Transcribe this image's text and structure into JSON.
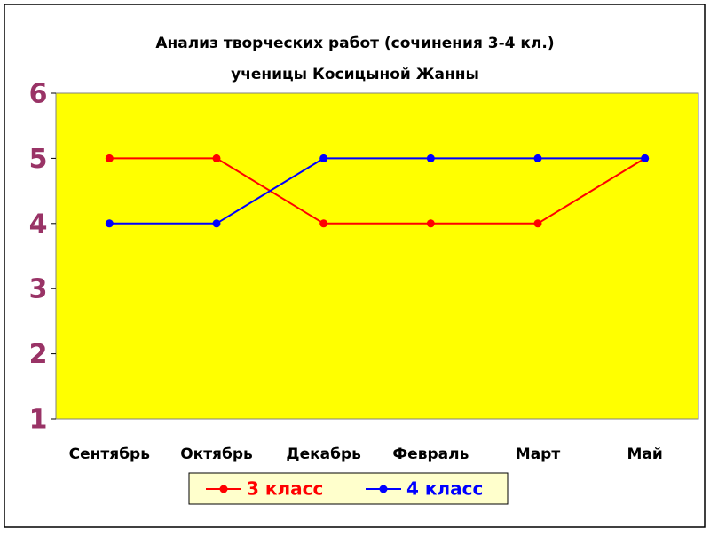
{
  "chart_data": {
    "type": "line",
    "title": "Анализ творческих работ (сочинения 3-4 кл.)",
    "subtitle": "ученицы Косицыной Жанны",
    "categories": [
      "Сентябрь",
      "Октябрь",
      "Декабрь",
      "Февраль",
      "Март",
      "Май"
    ],
    "series": [
      {
        "name": "3 класс",
        "color": "#ff0000",
        "values": [
          5,
          5,
          4,
          4,
          4,
          5
        ]
      },
      {
        "name": "4 класс",
        "color": "#0000ff",
        "values": [
          4,
          4,
          5,
          5,
          5,
          5
        ]
      }
    ],
    "ylim": [
      1,
      6
    ],
    "yticks": [
      1,
      2,
      3,
      4,
      5,
      6
    ],
    "grid": false,
    "plot_background": "#ffff00",
    "legend": "bottom"
  }
}
